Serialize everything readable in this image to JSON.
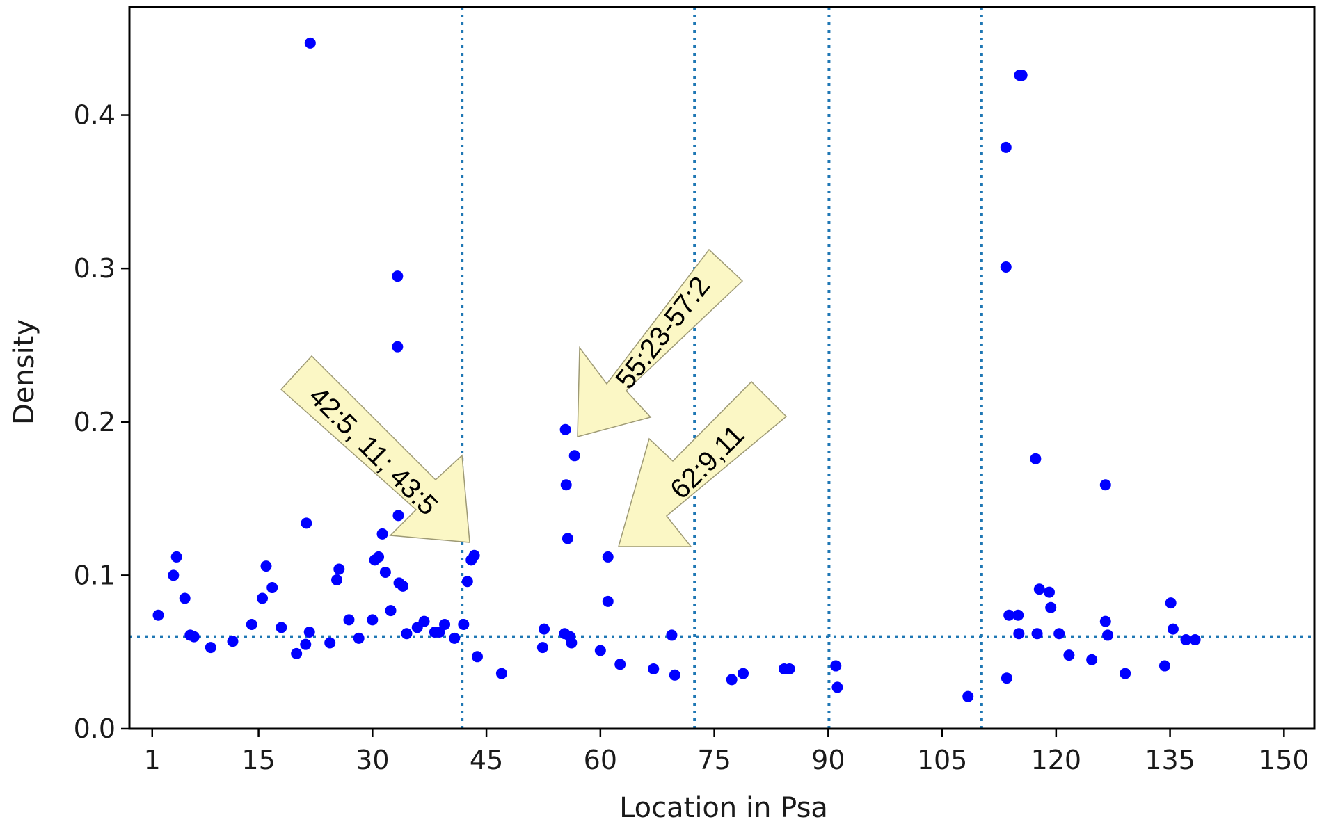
{
  "chart_data": {
    "type": "scatter",
    "xlabel": "Location in Psa",
    "ylabel": "Density",
    "xlim": [
      -2,
      154
    ],
    "ylim": [
      0,
      0.4705
    ],
    "x_ticks": [
      {
        "label": "1",
        "pos": 1
      },
      {
        "label": "15",
        "pos": 15
      },
      {
        "label": "30",
        "pos": 30
      },
      {
        "label": "45",
        "pos": 45
      },
      {
        "label": "60",
        "pos": 60
      },
      {
        "label": "75",
        "pos": 75
      },
      {
        "label": "90",
        "pos": 90
      },
      {
        "label": "105",
        "pos": 105
      },
      {
        "label": "120",
        "pos": 120
      },
      {
        "label": "135",
        "pos": 135
      },
      {
        "label": "150",
        "pos": 150
      }
    ],
    "y_ticks": [
      {
        "label": "0.0",
        "pos": 0.0
      },
      {
        "label": "0.1",
        "pos": 0.1
      },
      {
        "label": "0.2",
        "pos": 0.2
      },
      {
        "label": "0.3",
        "pos": 0.3
      },
      {
        "label": "0.4",
        "pos": 0.4
      }
    ],
    "point_color": "#0000ff",
    "guide_color": "#1f77b4",
    "guide_style": "dotted",
    "horizontal_reference": 0.06,
    "vertical_references": [
      41.8,
      72.4,
      90.1,
      110.2
    ],
    "points": [
      [
        1.8,
        0.074
      ],
      [
        3.8,
        0.1
      ],
      [
        4.2,
        0.112
      ],
      [
        5.3,
        0.085
      ],
      [
        6.0,
        0.061
      ],
      [
        6.5,
        0.06
      ],
      [
        8.7,
        0.053
      ],
      [
        11.6,
        0.057
      ],
      [
        14.1,
        0.068
      ],
      [
        15.5,
        0.085
      ],
      [
        16.0,
        0.106
      ],
      [
        16.8,
        0.092
      ],
      [
        18.0,
        0.066
      ],
      [
        20.0,
        0.049
      ],
      [
        21.3,
        0.134
      ],
      [
        21.2,
        0.055
      ],
      [
        21.7,
        0.063
      ],
      [
        21.8,
        0.447
      ],
      [
        24.4,
        0.056
      ],
      [
        25.3,
        0.097
      ],
      [
        25.6,
        0.104
      ],
      [
        26.9,
        0.071
      ],
      [
        28.2,
        0.059
      ],
      [
        30.0,
        0.071
      ],
      [
        30.3,
        0.11
      ],
      [
        30.8,
        0.112
      ],
      [
        31.3,
        0.127
      ],
      [
        31.7,
        0.102
      ],
      [
        32.4,
        0.077
      ],
      [
        33.3,
        0.295
      ],
      [
        33.3,
        0.249
      ],
      [
        33.4,
        0.139
      ],
      [
        33.5,
        0.095
      ],
      [
        34.0,
        0.093
      ],
      [
        34.5,
        0.062
      ],
      [
        35.9,
        0.066
      ],
      [
        36.8,
        0.07
      ],
      [
        38.2,
        0.063
      ],
      [
        38.8,
        0.063
      ],
      [
        39.5,
        0.068
      ],
      [
        40.8,
        0.059
      ],
      [
        42.0,
        0.068
      ],
      [
        42.5,
        0.096
      ],
      [
        43.0,
        0.11
      ],
      [
        43.4,
        0.113
      ],
      [
        43.8,
        0.047
      ],
      [
        47.0,
        0.036
      ],
      [
        52.4,
        0.053
      ],
      [
        52.6,
        0.065
      ],
      [
        55.3,
        0.062
      ],
      [
        55.4,
        0.195
      ],
      [
        55.5,
        0.159
      ],
      [
        55.7,
        0.124
      ],
      [
        56.0,
        0.06
      ],
      [
        56.2,
        0.056
      ],
      [
        56.6,
        0.178
      ],
      [
        60.0,
        0.051
      ],
      [
        61.0,
        0.112
      ],
      [
        61.0,
        0.083
      ],
      [
        62.6,
        0.042
      ],
      [
        67.0,
        0.039
      ],
      [
        69.4,
        0.061
      ],
      [
        69.8,
        0.035
      ],
      [
        77.3,
        0.032
      ],
      [
        78.8,
        0.036
      ],
      [
        84.2,
        0.039
      ],
      [
        84.9,
        0.039
      ],
      [
        91.0,
        0.041
      ],
      [
        91.2,
        0.027
      ],
      [
        108.4,
        0.021
      ],
      [
        113.4,
        0.379
      ],
      [
        113.4,
        0.301
      ],
      [
        113.5,
        0.033
      ],
      [
        113.8,
        0.074
      ],
      [
        115.0,
        0.074
      ],
      [
        115.1,
        0.062
      ],
      [
        115.2,
        0.426
      ],
      [
        115.5,
        0.426
      ],
      [
        117.3,
        0.176
      ],
      [
        117.5,
        0.062
      ],
      [
        117.8,
        0.091
      ],
      [
        119.1,
        0.089
      ],
      [
        119.3,
        0.079
      ],
      [
        120.4,
        0.062
      ],
      [
        121.7,
        0.048
      ],
      [
        124.7,
        0.045
      ],
      [
        126.5,
        0.159
      ],
      [
        126.5,
        0.07
      ],
      [
        126.8,
        0.061
      ],
      [
        129.1,
        0.036
      ],
      [
        134.3,
        0.041
      ],
      [
        135.1,
        0.082
      ],
      [
        135.4,
        0.065
      ],
      [
        137.1,
        0.058
      ],
      [
        138.3,
        0.058
      ]
    ],
    "annotations": [
      {
        "text": "42:5, 11; 43:5"
      },
      {
        "text": "55:23-57:2"
      },
      {
        "text": "62:9,11"
      }
    ]
  }
}
